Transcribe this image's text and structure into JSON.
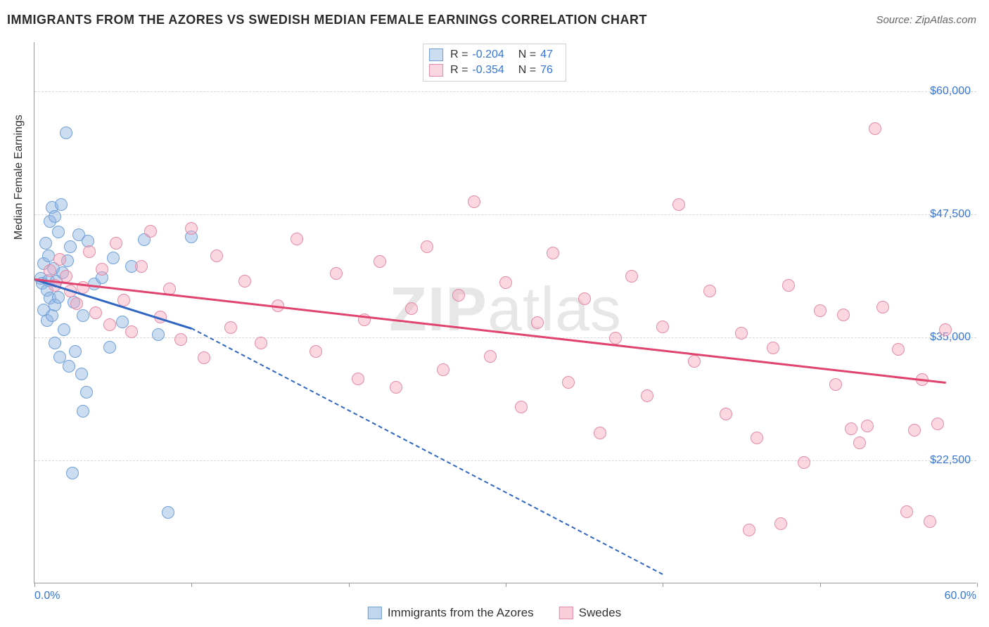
{
  "title": "IMMIGRANTS FROM THE AZORES VS SWEDISH MEDIAN FEMALE EARNINGS CORRELATION CHART",
  "source": "Source: ZipAtlas.com",
  "watermark_a": "ZIP",
  "watermark_b": "atlas",
  "y_axis_title": "Median Female Earnings",
  "chart": {
    "type": "scatter",
    "xlim": [
      0,
      60
    ],
    "ylim": [
      10000,
      65000
    ],
    "x_ticks": [
      0,
      10,
      20,
      30,
      40,
      50,
      60
    ],
    "x_min_label": "0.0%",
    "x_max_label": "60.0%",
    "y_grid": [
      22500,
      35000,
      47500,
      60000
    ],
    "y_tick_labels": [
      "$22,500",
      "$35,000",
      "$47,500",
      "$60,000"
    ],
    "grid_color": "#d8d8d8",
    "axis_color": "#999999",
    "label_color": "#3876d6",
    "background_color": "#ffffff"
  },
  "series": [
    {
      "name": "Immigrants from the Azores",
      "fill": "rgba(141,180,226,0.45)",
      "stroke": "#6fa0d8",
      "trend_color": "#2f66c4",
      "trend_solid_x": [
        0,
        10
      ],
      "trend_solid_y": [
        41000,
        36000
      ],
      "trend_dash_x": [
        10,
        40
      ],
      "trend_dash_y": [
        36000,
        11000
      ],
      "R": "-0.204",
      "N": "47",
      "points": [
        [
          0.4,
          41000
        ],
        [
          0.5,
          40500
        ],
        [
          0.6,
          42500
        ],
        [
          0.8,
          39800
        ],
        [
          0.9,
          40800
        ],
        [
          1.0,
          46800
        ],
        [
          1.1,
          48200
        ],
        [
          1.3,
          47300
        ],
        [
          1.5,
          45700
        ],
        [
          1.7,
          48500
        ],
        [
          0.7,
          44600
        ],
        [
          0.9,
          43300
        ],
        [
          1.2,
          42000
        ],
        [
          1.4,
          40700
        ],
        [
          1.0,
          39000
        ],
        [
          0.6,
          37800
        ],
        [
          0.8,
          36700
        ],
        [
          1.1,
          37200
        ],
        [
          1.3,
          38300
        ],
        [
          1.5,
          39100
        ],
        [
          1.8,
          41600
        ],
        [
          2.1,
          42800
        ],
        [
          2.3,
          44200
        ],
        [
          2.5,
          38600
        ],
        [
          2.8,
          45400
        ],
        [
          3.1,
          37200
        ],
        [
          3.4,
          44800
        ],
        [
          3.8,
          40400
        ],
        [
          4.3,
          41100
        ],
        [
          5.0,
          43100
        ],
        [
          5.6,
          36600
        ],
        [
          6.2,
          42200
        ],
        [
          7.0,
          44900
        ],
        [
          7.9,
          35300
        ],
        [
          10.0,
          45200
        ],
        [
          2.0,
          55800
        ],
        [
          1.3,
          34400
        ],
        [
          1.6,
          33000
        ],
        [
          2.2,
          32100
        ],
        [
          2.6,
          33600
        ],
        [
          3.0,
          31300
        ],
        [
          3.3,
          29400
        ],
        [
          2.4,
          21200
        ],
        [
          1.9,
          35800
        ],
        [
          4.8,
          34000
        ],
        [
          8.5,
          17200
        ],
        [
          3.1,
          27500
        ]
      ]
    },
    {
      "name": "Swedes",
      "fill": "rgba(244,166,188,0.45)",
      "stroke": "#e48ca6",
      "trend_color": "#e0436d",
      "trend_solid_x": [
        0,
        58
      ],
      "trend_solid_y": [
        41000,
        30500
      ],
      "R": "-0.354",
      "N": "76",
      "points": [
        [
          1.0,
          41800
        ],
        [
          1.3,
          40300
        ],
        [
          1.6,
          42900
        ],
        [
          2.0,
          41200
        ],
        [
          2.3,
          39700
        ],
        [
          2.7,
          38400
        ],
        [
          3.1,
          40100
        ],
        [
          3.5,
          43700
        ],
        [
          3.9,
          37500
        ],
        [
          4.3,
          41900
        ],
        [
          4.8,
          36300
        ],
        [
          5.2,
          44600
        ],
        [
          5.7,
          38800
        ],
        [
          6.2,
          35600
        ],
        [
          6.8,
          42200
        ],
        [
          7.4,
          45800
        ],
        [
          8.0,
          37100
        ],
        [
          8.6,
          39900
        ],
        [
          9.3,
          34800
        ],
        [
          10.0,
          46100
        ],
        [
          10.8,
          32900
        ],
        [
          11.6,
          43300
        ],
        [
          12.5,
          36000
        ],
        [
          13.4,
          40700
        ],
        [
          14.4,
          34400
        ],
        [
          15.5,
          38200
        ],
        [
          16.7,
          45000
        ],
        [
          17.9,
          33600
        ],
        [
          19.2,
          41500
        ],
        [
          20.6,
          30800
        ],
        [
          21.0,
          36800
        ],
        [
          22.0,
          42700
        ],
        [
          23.0,
          29900
        ],
        [
          24.0,
          37900
        ],
        [
          25.0,
          44200
        ],
        [
          26.0,
          31700
        ],
        [
          27.0,
          39300
        ],
        [
          28.0,
          48800
        ],
        [
          29.0,
          33100
        ],
        [
          30.0,
          40600
        ],
        [
          31.0,
          27900
        ],
        [
          32.0,
          36500
        ],
        [
          33.0,
          43600
        ],
        [
          34.0,
          30400
        ],
        [
          35.0,
          38900
        ],
        [
          36.0,
          25300
        ],
        [
          37.0,
          34900
        ],
        [
          38.0,
          41200
        ],
        [
          39.0,
          29100
        ],
        [
          40.0,
          36100
        ],
        [
          41.0,
          48500
        ],
        [
          42.0,
          32600
        ],
        [
          43.0,
          39700
        ],
        [
          44.0,
          27200
        ],
        [
          45.0,
          35400
        ],
        [
          46.0,
          24800
        ],
        [
          47.0,
          33900
        ],
        [
          48.0,
          40300
        ],
        [
          49.0,
          22300
        ],
        [
          50.0,
          37700
        ],
        [
          51.0,
          30200
        ],
        [
          52.0,
          25700
        ],
        [
          51.5,
          37300
        ],
        [
          52.5,
          24300
        ],
        [
          53.0,
          26000
        ],
        [
          53.5,
          56200
        ],
        [
          54.0,
          38100
        ],
        [
          55.0,
          33800
        ],
        [
          55.5,
          17300
        ],
        [
          56.0,
          25600
        ],
        [
          56.5,
          30700
        ],
        [
          57.0,
          16300
        ],
        [
          57.5,
          26200
        ],
        [
          58.0,
          35800
        ],
        [
          47.5,
          16100
        ],
        [
          45.5,
          15400
        ]
      ]
    }
  ],
  "legend_bottom": [
    {
      "label": "Immigrants from the Azores",
      "fill": "rgba(141,180,226,0.55)",
      "stroke": "#6fa0d8"
    },
    {
      "label": "Swedes",
      "fill": "rgba(244,166,188,0.55)",
      "stroke": "#e48ca6"
    }
  ]
}
